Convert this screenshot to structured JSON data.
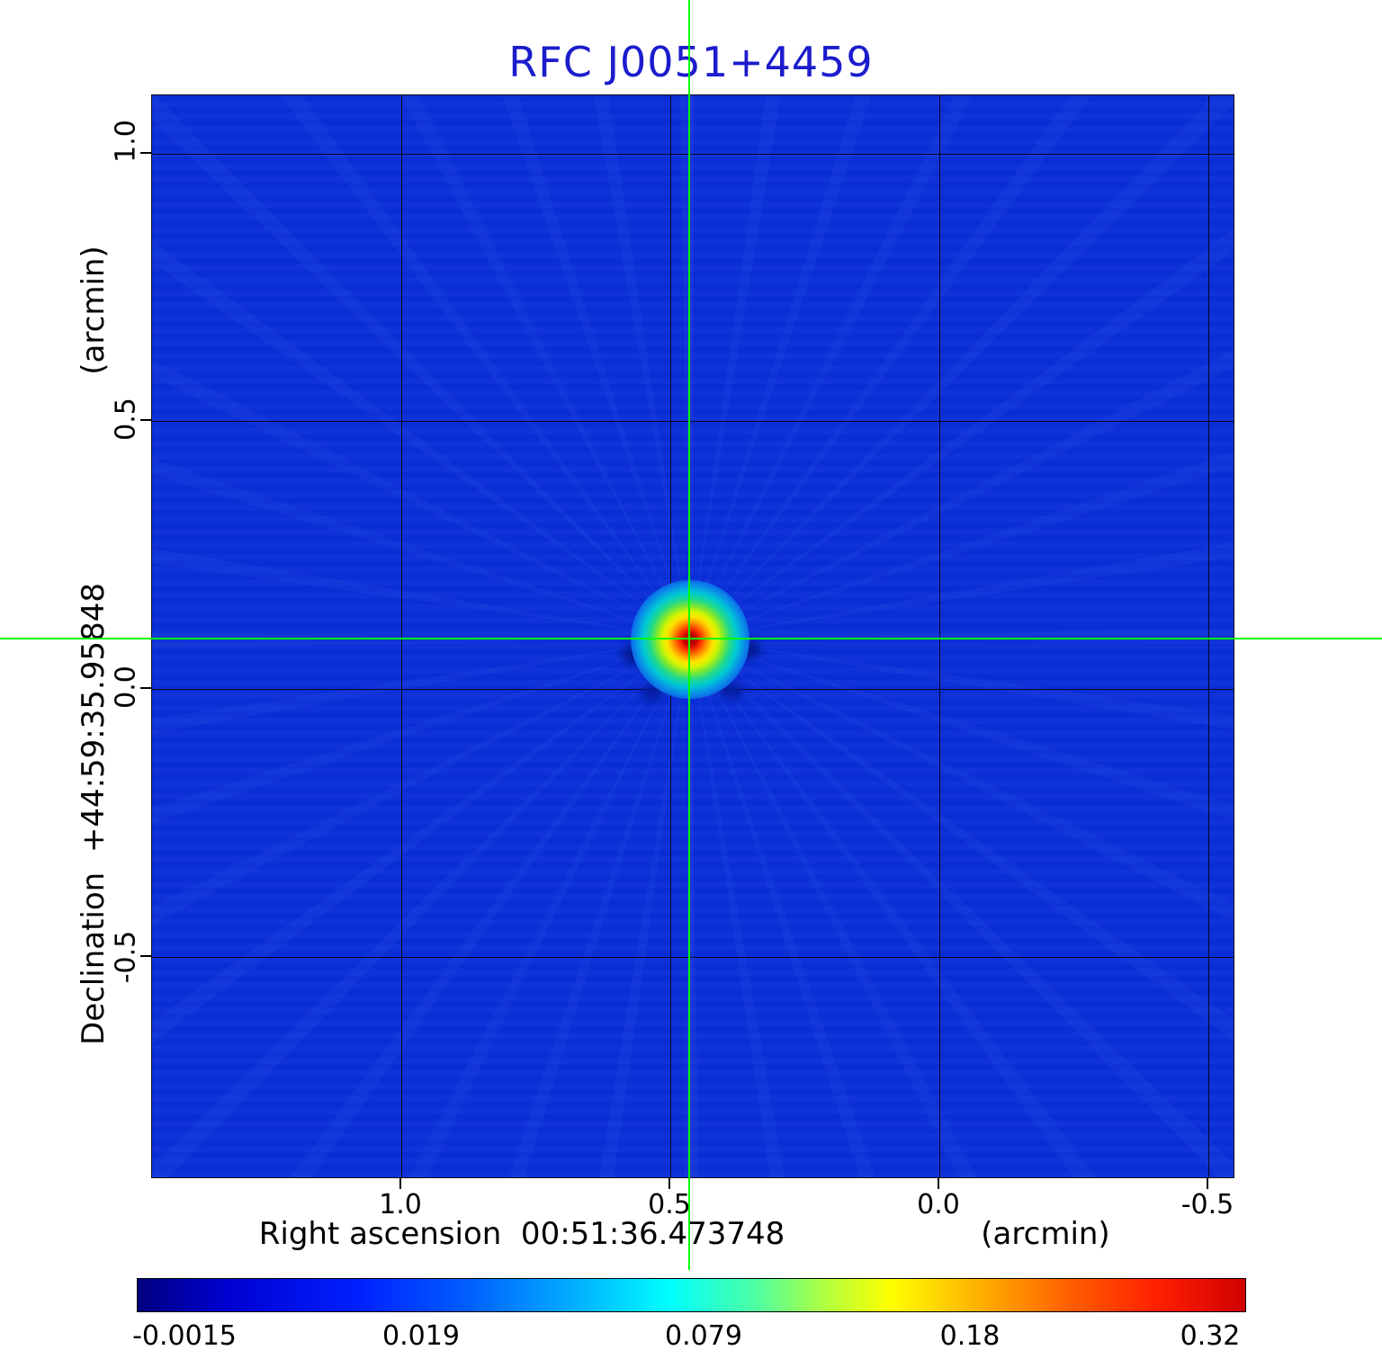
{
  "title": "RFC J0051+4459",
  "plot": {
    "x_axis": {
      "label": "Right ascension  00:51:36.473748",
      "unit": "(arcmin)",
      "ticks": [
        "1.0",
        "0.5",
        "0.0",
        "-0.5"
      ]
    },
    "y_axis": {
      "label": "Declination  +44:59:35.95848",
      "unit": "(arcmin)",
      "ticks": [
        "1.0",
        "0.5",
        "0.0",
        "-0.5"
      ]
    }
  },
  "colorbar": {
    "ticks": [
      "-0.0015",
      "0.019",
      "0.079",
      "0.18",
      "0.32"
    ]
  },
  "colors": {
    "title_text": "#1c1ccd",
    "figure_background": "#ffffff",
    "map_background": "#0a2fd8",
    "crosshair": "#00ff00",
    "grid": "#000000",
    "source_peak": "#8f0000"
  },
  "chart_data": {
    "type": "heatmap",
    "title": "RFC J0051+4459",
    "xlabel": "Right ascension 00:51:36.473748 (arcmin)",
    "ylabel": "Declination +44:59:35.95848 (arcmin)",
    "x_tick_values_arcmin": [
      1.0,
      0.5,
      0.0,
      -0.5
    ],
    "y_tick_values_arcmin": [
      1.0,
      0.5,
      0.0,
      -0.5
    ],
    "x_range_arcmin": [
      1.46,
      -0.55
    ],
    "y_range_arcmin": [
      1.11,
      -0.91
    ],
    "grid": true,
    "colormap": "jet",
    "colorbar_tick_values": [
      -0.0015,
      0.019,
      0.079,
      0.18,
      0.32
    ],
    "intensity_min": -0.0015,
    "intensity_max": 0.32,
    "background_intensity": 0.0,
    "source": {
      "ra": "00:51:36.473748",
      "dec": "+44:59:35.95848",
      "x_offset_arcmin": 0.46,
      "y_offset_arcmin": 0.09,
      "peak_intensity": 0.32
    },
    "crosshair": {
      "x_arcmin": 0.46,
      "y_arcmin": 0.09,
      "color": "#00ff00"
    }
  }
}
